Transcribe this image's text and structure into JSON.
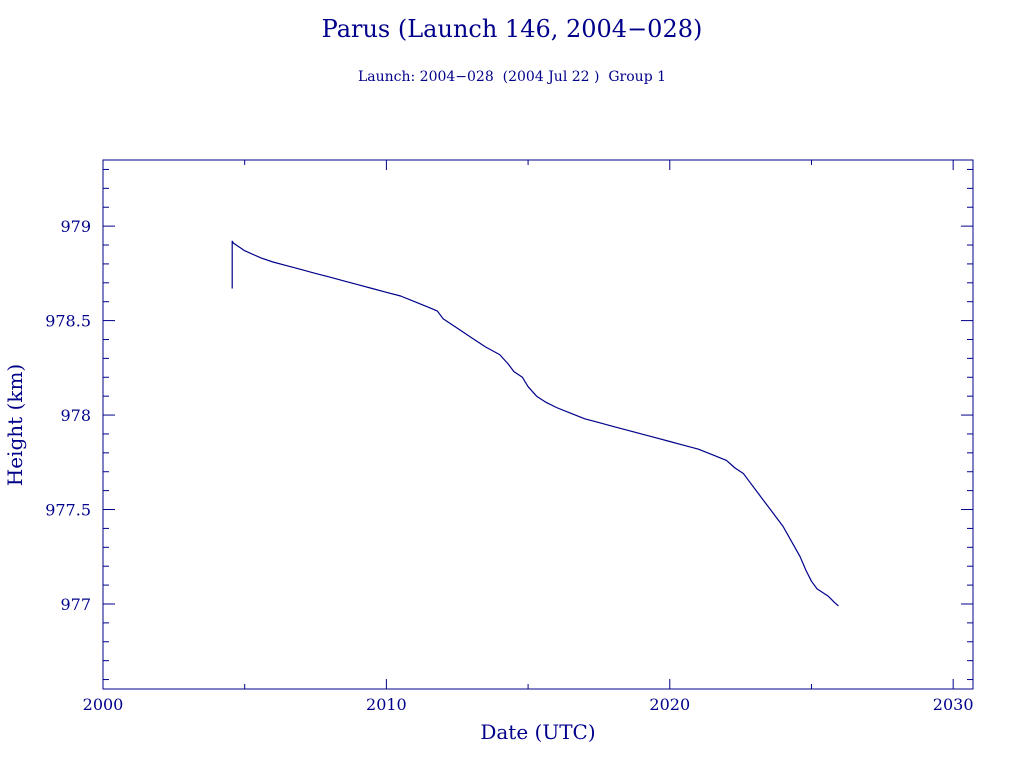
{
  "chart_data": {
    "type": "line",
    "title": "Parus (Launch 146, 2004−028)",
    "subtitle": "Launch: 2004−028  (2004 Jul 22 )  Group 1",
    "xlabel": "Date (UTC)",
    "ylabel": "Height (km)",
    "xlim": [
      2000,
      2030.7
    ],
    "ylim": [
      976.55,
      979.35
    ],
    "xticks": [
      2000,
      2010,
      2020,
      2030
    ],
    "xtick_labels": [
      "2000",
      "2010",
      "2020",
      "2030"
    ],
    "yticks": [
      977,
      977.5,
      978,
      978.5,
      979
    ],
    "ytick_labels": [
      "977",
      "977.5",
      "978",
      "978.5",
      "979"
    ],
    "grid": false,
    "series": [
      {
        "color": "#00008b",
        "x": [
          2004.56,
          2004.56,
          2004.6,
          2004.8,
          2005.0,
          2005.3,
          2005.6,
          2006.0,
          2006.5,
          2007.0,
          2007.5,
          2008.0,
          2008.5,
          2009.0,
          2009.5,
          2010.0,
          2010.5,
          2011.0,
          2011.5,
          2011.8,
          2012.0,
          2012.5,
          2013.0,
          2013.5,
          2014.0,
          2014.3,
          2014.5,
          2014.8,
          2015.0,
          2015.3,
          2015.6,
          2016.0,
          2016.5,
          2017.0,
          2017.5,
          2018.0,
          2018.5,
          2019.0,
          2019.5,
          2020.0,
          2020.5,
          2021.0,
          2021.5,
          2022.0,
          2022.3,
          2022.6,
          2022.8,
          2023.0,
          2023.3,
          2023.6,
          2024.0,
          2024.3,
          2024.6,
          2024.8,
          2025.0,
          2025.2,
          2025.4,
          2025.6,
          2025.8,
          2025.95
        ],
        "y": [
          978.67,
          978.92,
          978.91,
          978.89,
          978.87,
          978.85,
          978.83,
          978.81,
          978.79,
          978.77,
          978.75,
          978.73,
          978.71,
          978.69,
          978.67,
          978.65,
          978.63,
          978.6,
          978.57,
          978.55,
          978.51,
          978.46,
          978.41,
          978.36,
          978.32,
          978.27,
          978.23,
          978.2,
          978.15,
          978.1,
          978.07,
          978.04,
          978.01,
          977.98,
          977.96,
          977.94,
          977.92,
          977.9,
          977.88,
          977.86,
          977.84,
          977.82,
          977.79,
          977.76,
          977.72,
          977.69,
          977.65,
          977.61,
          977.55,
          977.49,
          977.41,
          977.33,
          977.25,
          977.18,
          977.12,
          977.08,
          977.06,
          977.04,
          977.01,
          976.99
        ]
      }
    ]
  }
}
